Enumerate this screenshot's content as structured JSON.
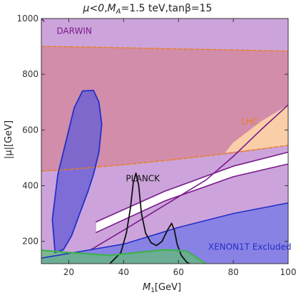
{
  "chart_data": {
    "type": "area",
    "title_parts": {
      "mu": "μ<0",
      "sep1": ",",
      "ma": "M",
      "ma_sub": "A",
      "ma_val": "=1.5 teV",
      "sep2": ",",
      "tb": "tanβ=15"
    },
    "xlabel_main": "M",
    "xlabel_sub": "1",
    "xlabel_unit": "[GeV]",
    "ylabel": "|μ|[GeV]",
    "xlim": [
      10,
      100
    ],
    "ylim": [
      120,
      1000
    ],
    "xticks": [
      20,
      40,
      60,
      80,
      100
    ],
    "yticks": [
      200,
      400,
      600,
      800,
      1000
    ],
    "annotations": [
      {
        "text": "DARWIN",
        "x": 22,
        "y": 945,
        "color": "#7a1a8c"
      },
      {
        "text": "LHC",
        "x": 86,
        "y": 620,
        "color": "#e87f1e"
      },
      {
        "text": "PLANCK",
        "x": 47,
        "y": 415,
        "color": "#111111"
      },
      {
        "text": "XENON1T Excluded",
        "x": 86,
        "y": 170,
        "color": "#2230c8"
      }
    ],
    "series": [
      {
        "name": "DARWIN",
        "kind": "region",
        "fill": "#c79ad7",
        "opacity": 0.9,
        "points": [
          [
            10,
            1000
          ],
          [
            100,
            1000
          ],
          [
            100,
            120
          ],
          [
            10,
            120
          ]
        ]
      },
      {
        "name": "LHC",
        "kind": "region",
        "fill": "#d4869b",
        "opacity": 0.75,
        "points": [
          [
            10,
            900
          ],
          [
            30,
            897
          ],
          [
            60,
            891
          ],
          [
            100,
            883
          ],
          [
            100,
            545
          ],
          [
            80,
            518
          ],
          [
            60,
            495
          ],
          [
            40,
            475
          ],
          [
            20,
            458
          ],
          [
            10,
            452
          ]
        ]
      },
      {
        "name": "LHC-edge",
        "kind": "region",
        "fill": "#fcd3a8",
        "opacity": 0.95,
        "points": [
          [
            77,
            518
          ],
          [
            100,
            545
          ],
          [
            100,
            690
          ],
          [
            90,
            630
          ],
          [
            80,
            555
          ]
        ]
      },
      {
        "name": "PLANCK",
        "kind": "region",
        "fill": "#ffffff",
        "opacity": 1.0,
        "points": [
          [
            30,
            270
          ],
          [
            55,
            380
          ],
          [
            80,
            470
          ],
          [
            100,
            520
          ],
          [
            100,
            478
          ],
          [
            80,
            432
          ],
          [
            55,
            345
          ],
          [
            30,
            232
          ]
        ]
      },
      {
        "name": "XENON1T",
        "kind": "region",
        "fill": "#7d7de6",
        "opacity": 0.85,
        "points": [
          [
            10,
            120
          ],
          [
            10,
            140
          ],
          [
            40,
            190
          ],
          [
            60,
            250
          ],
          [
            80,
            300
          ],
          [
            100,
            338
          ],
          [
            100,
            120
          ]
        ]
      },
      {
        "name": "XENON1T-contour",
        "kind": "region",
        "fill": "#6a5fd4",
        "opacity": 0.8,
        "points": [
          [
            15,
            160
          ],
          [
            14,
            280
          ],
          [
            16,
            440
          ],
          [
            19,
            560
          ],
          [
            22,
            680
          ],
          [
            25,
            740
          ],
          [
            29,
            742
          ],
          [
            31,
            700
          ],
          [
            32,
            620
          ],
          [
            31,
            520
          ],
          [
            29,
            440
          ],
          [
            27,
            380
          ],
          [
            24,
            300
          ],
          [
            21,
            220
          ],
          [
            18,
            170
          ]
        ]
      },
      {
        "name": "direct-search",
        "kind": "region",
        "fill": "#5fbf70",
        "opacity": 0.7,
        "points": [
          [
            10,
            120
          ],
          [
            10,
            168
          ],
          [
            20,
            160
          ],
          [
            35,
            150
          ],
          [
            45,
            160
          ],
          [
            55,
            170
          ],
          [
            63,
            165
          ],
          [
            70,
            120
          ]
        ]
      },
      {
        "name": "DARWIN-boundary",
        "kind": "line",
        "stroke": "#7a1a8c",
        "width": 1.6,
        "dash": "",
        "points": [
          [
            10,
            1000
          ],
          [
            11,
            990
          ]
        ]
      },
      {
        "name": "LHC-upper",
        "kind": "line",
        "stroke": "#e87f1e",
        "width": 1.4,
        "dash": "5,3",
        "points": [
          [
            10,
            900
          ],
          [
            30,
            897
          ],
          [
            60,
            891
          ],
          [
            100,
            883
          ]
        ]
      },
      {
        "name": "LHC-lower",
        "kind": "line",
        "stroke": "#e87f1e",
        "width": 1.4,
        "dash": "5,3",
        "points": [
          [
            10,
            452
          ],
          [
            20,
            458
          ],
          [
            40,
            475
          ],
          [
            60,
            495
          ],
          [
            80,
            518
          ],
          [
            100,
            545
          ]
        ]
      },
      {
        "name": "purple-1",
        "kind": "line",
        "stroke": "#7a1a8c",
        "width": 1.6,
        "dash": "",
        "points": [
          [
            28,
            170
          ],
          [
            40,
            240
          ],
          [
            55,
            330
          ],
          [
            70,
            420
          ],
          [
            80,
            505
          ],
          [
            90,
            600
          ],
          [
            100,
            690
          ]
        ]
      },
      {
        "name": "purple-2",
        "kind": "line",
        "stroke": "#7a1a8c",
        "width": 1.6,
        "dash": "",
        "points": [
          [
            30,
            232
          ],
          [
            55,
            345
          ],
          [
            80,
            432
          ],
          [
            100,
            478
          ]
        ]
      },
      {
        "name": "purple-3",
        "kind": "line",
        "stroke": "#7a1a8c",
        "width": 1.6,
        "dash": "",
        "points": [
          [
            30,
            270
          ],
          [
            55,
            380
          ],
          [
            80,
            470
          ],
          [
            100,
            520
          ]
        ]
      },
      {
        "name": "XENON1T-line",
        "kind": "line",
        "stroke": "#2230c8",
        "width": 1.6,
        "dash": "",
        "points": [
          [
            10,
            140
          ],
          [
            40,
            190
          ],
          [
            60,
            250
          ],
          [
            80,
            300
          ],
          [
            100,
            338
          ]
        ]
      },
      {
        "name": "blue-contour",
        "kind": "line",
        "stroke": "#2230c8",
        "width": 1.8,
        "dash": "",
        "points": [
          [
            15,
            160
          ],
          [
            14,
            280
          ],
          [
            16,
            440
          ],
          [
            19,
            560
          ],
          [
            22,
            680
          ],
          [
            25,
            740
          ],
          [
            29,
            742
          ],
          [
            31,
            700
          ],
          [
            32,
            620
          ],
          [
            31,
            520
          ],
          [
            29,
            440
          ],
          [
            27,
            380
          ],
          [
            24,
            300
          ],
          [
            21,
            220
          ],
          [
            18,
            170
          ],
          [
            15,
            160
          ]
        ]
      },
      {
        "name": "PLANCK-curve",
        "kind": "line",
        "stroke": "#111111",
        "width": 1.8,
        "dash": "",
        "points": [
          [
            35,
            120
          ],
          [
            39,
            160
          ],
          [
            41,
            230
          ],
          [
            42.5,
            320
          ],
          [
            43.5,
            410
          ],
          [
            44.5,
            445
          ],
          [
            45.5,
            400
          ],
          [
            46.5,
            300
          ],
          [
            48,
            230
          ],
          [
            50,
            195
          ],
          [
            52,
            185
          ],
          [
            54,
            200
          ],
          [
            56,
            240
          ],
          [
            57.5,
            265
          ],
          [
            58.5,
            240
          ],
          [
            59.5,
            190
          ],
          [
            61,
            150
          ],
          [
            63,
            125
          ],
          [
            64,
            120
          ]
        ]
      },
      {
        "name": "green-curve",
        "kind": "line",
        "stroke": "#3fb24f",
        "width": 2.2,
        "dash": "",
        "points": [
          [
            10,
            168
          ],
          [
            20,
            160
          ],
          [
            35,
            150
          ],
          [
            45,
            160
          ],
          [
            55,
            170
          ],
          [
            63,
            165
          ],
          [
            70,
            120
          ]
        ]
      }
    ]
  }
}
